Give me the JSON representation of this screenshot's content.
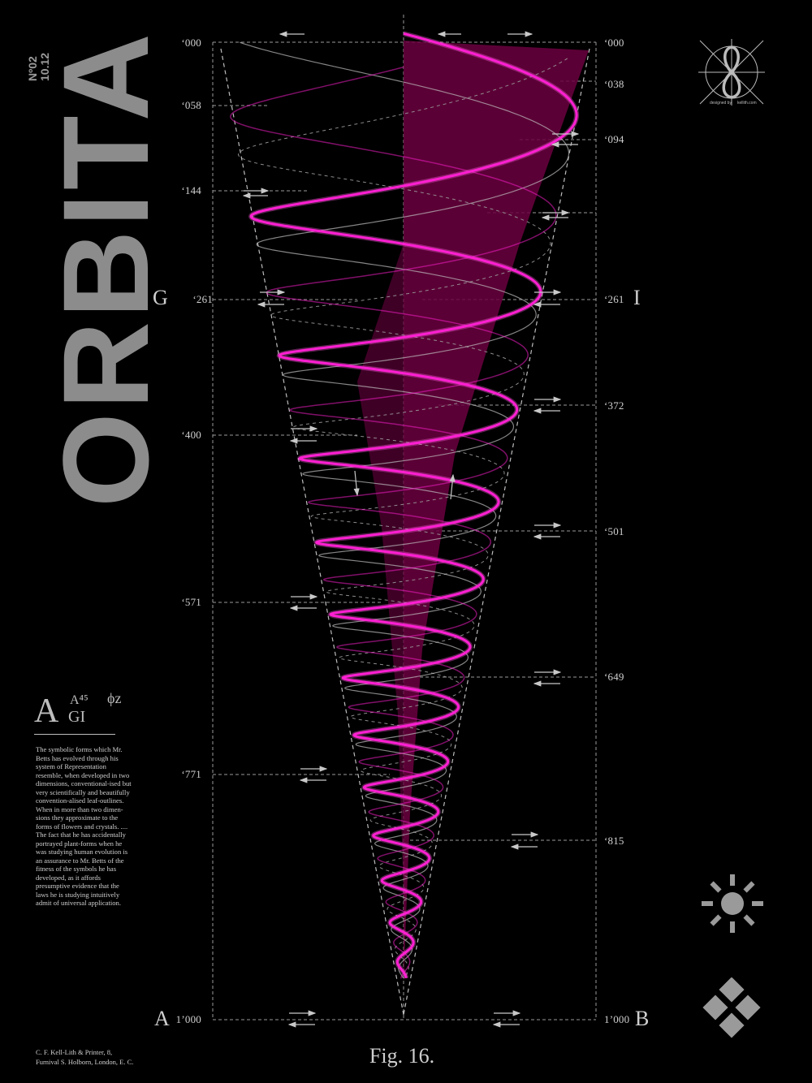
{
  "brand": {
    "title": "ORBITA",
    "issue_no": "Nº02",
    "issue_date": "10.12"
  },
  "corners": {
    "top_left": "G",
    "top_right": "I",
    "bottom_left": "A",
    "bottom_right": "B"
  },
  "ticks_left": [
    "‘000",
    "‘058",
    "‘144",
    "‘261",
    "‘400",
    "‘571",
    "‘771",
    "1’000"
  ],
  "ticks_right": [
    "‘000",
    "‘038",
    "‘094",
    "‘261",
    "‘372",
    "‘501",
    "‘649",
    "‘815",
    "1’000"
  ],
  "glyph_block": {
    "big": "A",
    "sup": "A⁴⁵",
    "sub": "GI",
    "phi": "ϕz"
  },
  "blurb": "The symbolic forms which Mr. Betts has evolved through his system of Representation resemble, when developed in two dimensions, conventional-ised but very scientifically and beautifully convention-alised leaf-outlines. When in more than two dimen-sions they approximate to the forms of flowers and crystals. .... The fact that he has accidentally portrayed plant-forms when he was studying human evolution is an assurance to Mr. Betts of the fitness of the symbols he has developed, as it affords presumptive evidence that the laws he is studying intuitively admit of universal application.",
  "printer_line1": "C. F. Kell-Lith & Printer, 8,",
  "printer_line2": "Furnival S. Holborn, London, E. C.",
  "figure_caption": "Fig. 16.",
  "logo": {
    "designed_by": "designed by",
    "site": "kellith.com"
  },
  "icons": [
    "sun-icon",
    "diamond-cluster-icon"
  ],
  "colors": {
    "background": "#000000",
    "magenta": "#ff1fd2",
    "magenta_fill": "#6b0040",
    "gray": "#bdbdbd"
  }
}
